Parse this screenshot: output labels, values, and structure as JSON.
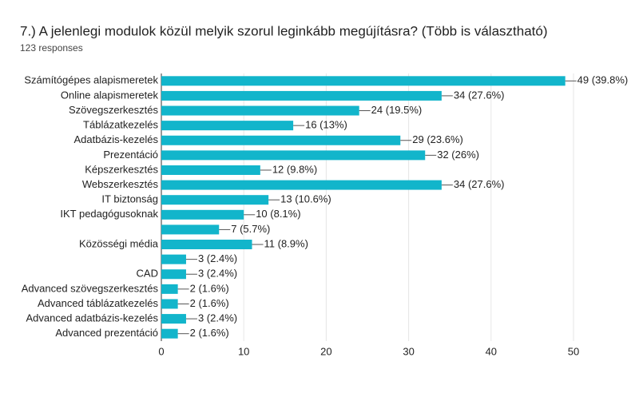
{
  "chart_data": {
    "type": "bar",
    "orientation": "horizontal",
    "title": "7.) A jelenlegi modulok közül melyik szorul leginkább megújításra? (Több is választható)",
    "subtitle": "123 responses",
    "categories": [
      "Számítógépes alapismeretek",
      "Online alapismeretek",
      "Szövegszerkesztés",
      "Táblázatkezelés",
      "Adatbázis-kezelés",
      "Prezentáció",
      "Képszerkesztés",
      "Webszerkesztés",
      "IT biztonság",
      "IKT pedagógusoknak",
      null,
      "Közösségi média",
      null,
      "CAD",
      "Advanced szövegszerkesztés",
      "Advanced táblázatkezelés",
      "Advanced adatbázis-kezelés",
      "Advanced prezentáció"
    ],
    "values": [
      49,
      34,
      24,
      16,
      29,
      32,
      12,
      34,
      13,
      10,
      7,
      11,
      3,
      3,
      2,
      2,
      3,
      2
    ],
    "value_labels": [
      "49 (39.8%)",
      "34 (27.6%)",
      "24 (19.5%)",
      "16 (13%)",
      "29 (23.6%)",
      "32 (26%)",
      "12 (9.8%)",
      "34 (27.6%)",
      "13 (10.6%)",
      "10 (8.1%)",
      "7 (5.7%)",
      "11 (8.9%)",
      "3 (2.4%)",
      "3 (2.4%)",
      "2 (1.6%)",
      "2 (1.6%)",
      "3 (2.4%)",
      "2 (1.6%)"
    ],
    "color": "#12b5cb",
    "xlim": [
      0,
      50
    ],
    "xticks": [
      0,
      10,
      20,
      30,
      40,
      50
    ],
    "grid": true
  }
}
